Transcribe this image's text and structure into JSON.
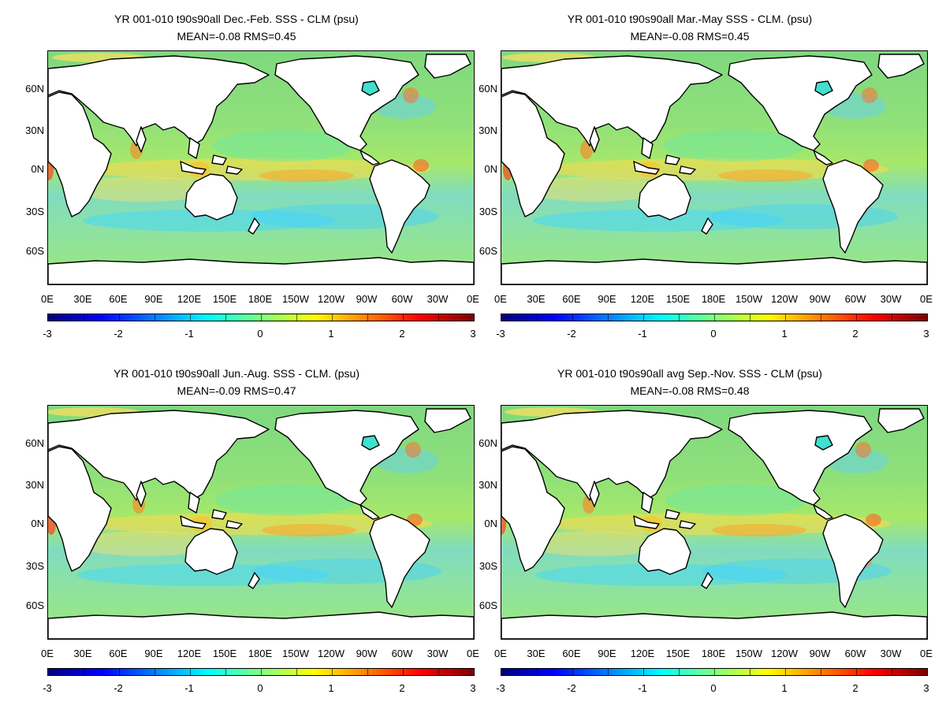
{
  "panels": [
    {
      "title": "YR 001-010 t90s90all  Dec.-Feb. SSS - CLM (psu)",
      "stats": "MEAN=-0.08   RMS=0.45"
    },
    {
      "title": "YR 001-010 t90s90all Mar.-May SSS - CLM. (psu)",
      "stats": "MEAN=-0.08   RMS=0.45"
    },
    {
      "title": "YR 001-010 t90s90all Jun.-Aug. SSS - CLM. (psu)",
      "stats": "MEAN=-0.09   RMS=0.47"
    },
    {
      "title": "YR 001-010 t90s90all avg Sep.-Nov. SSS - CLM (psu)",
      "stats": "MEAN=-0.08   RMS=0.48"
    }
  ],
  "lat_labels": [
    "60N",
    "30N",
    "0N",
    "30S",
    "60S"
  ],
  "lon_labels": [
    "0E",
    "30E",
    "60E",
    "90E",
    "120E",
    "150E",
    "180E",
    "150W",
    "120W",
    "90W",
    "60W",
    "30W",
    "0E"
  ],
  "colorbar_labels": [
    "-3",
    "-2",
    "-1",
    "0",
    "1",
    "2",
    "3"
  ],
  "colormap": [
    "#00007f",
    "#0000ff",
    "#0080ff",
    "#00ffff",
    "#80ff80",
    "#ffff00",
    "#ff8000",
    "#ff0000",
    "#7f0000"
  ],
  "land_color": "#ffffff",
  "ocean_base_color": "#8fe07a"
}
